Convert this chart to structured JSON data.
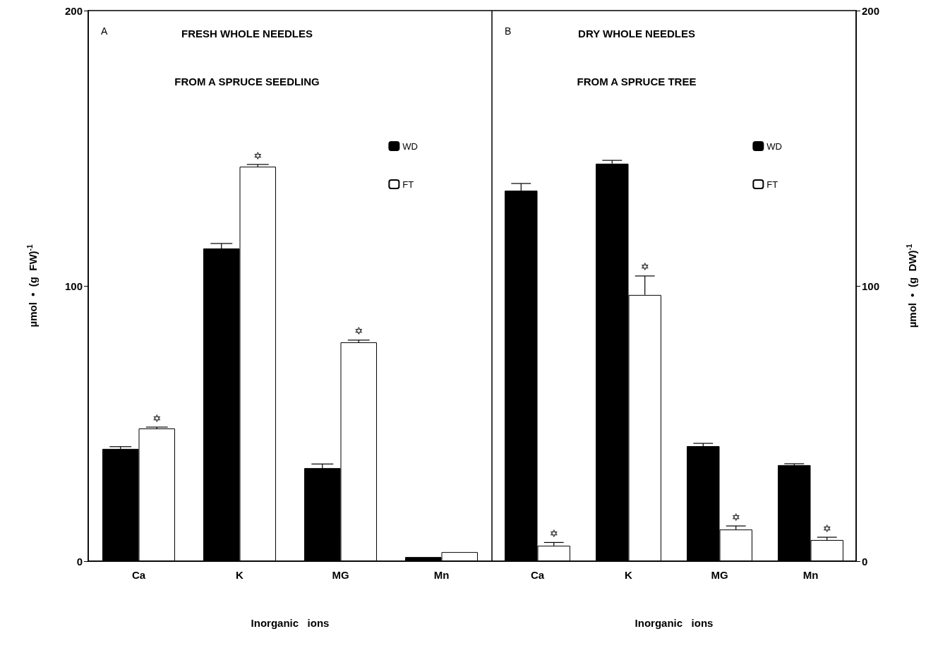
{
  "chart_data": [
    {
      "type": "bar",
      "title": "FRESH WHOLE NEEDLES",
      "subtitle": "FROM A SPRUCE SEEDLING",
      "xlabel": "Inorganic   ions",
      "ylabel": "µmol  •  (g  FW)$^{-1}$",
      "categories": [
        "Ca",
        "K",
        "MG",
        "Mn"
      ],
      "series": [
        {
          "name": "WD",
          "color": "#000000",
          "values": [
            40.8,
            113.6,
            33.8,
            1.5
          ],
          "errors": [
            [
              40.8,
              41.6
            ],
            [
              113.6,
              115.4
            ],
            [
              33.8,
              35.3
            ],
            null
          ]
        },
        {
          "name": "FT",
          "color": "#ffffff",
          "values": [
            48.2,
            143.3,
            79.5,
            3.3
          ],
          "errors": [
            [
              48.2,
              48.7
            ],
            [
              143.3,
              144.1
            ],
            [
              79.5,
              80.3
            ],
            null
          ]
        }
      ],
      "annotations": [
        "A",
        {
          "text": "✡",
          "x": "Ca",
          "y": 48.7
        },
        {
          "text": "✡",
          "x": "K",
          "y": 144.1
        },
        {
          "text": "✡",
          "x": "MG",
          "y": 80.3
        }
      ],
      "ylim": [
        0,
        200
      ],
      "yticks": [
        0,
        100,
        200
      ],
      "grid": false,
      "legend": "right"
    },
    {
      "type": "bar",
      "title": "DRY WHOLE NEEDLES",
      "subtitle": "FROM A SPRUCE TREE",
      "xlabel": "Inorganic   ions",
      "ylabel": "µmol  •  (g  DW)$^{-1}$",
      "categories": [
        "Ca",
        "K",
        "MG",
        "Mn"
      ],
      "series": [
        {
          "name": "WD",
          "color": "#000000",
          "values": [
            134.6,
            144.4,
            41.8,
            34.9
          ],
          "errors": [
            [
              134.6,
              137.2
            ],
            [
              144.4,
              145.6
            ],
            [
              41.8,
              42.8
            ],
            [
              34.9,
              35.4
            ]
          ]
        },
        {
          "name": "FT",
          "color": "#ffffff",
          "values": [
            5.6,
            96.7,
            11.5,
            7.7
          ],
          "errors": [
            [
              5.6,
              6.8
            ],
            [
              96.7,
              103.6
            ],
            [
              11.5,
              12.8
            ],
            [
              7.7,
              8.7
            ]
          ]
        }
      ],
      "annotations": [
        "B",
        {
          "text": "✡",
          "x": "Ca",
          "y": 6.8
        },
        {
          "text": "✡",
          "x": "K",
          "y": 103.6
        },
        {
          "text": "✡",
          "x": "MG",
          "y": 12.8
        },
        {
          "text": "✡",
          "x": "Mn",
          "y": 8.7
        }
      ],
      "ylim": [
        0,
        200
      ],
      "yticks": [
        0,
        100,
        200
      ],
      "grid": false,
      "legend": "right"
    }
  ]
}
